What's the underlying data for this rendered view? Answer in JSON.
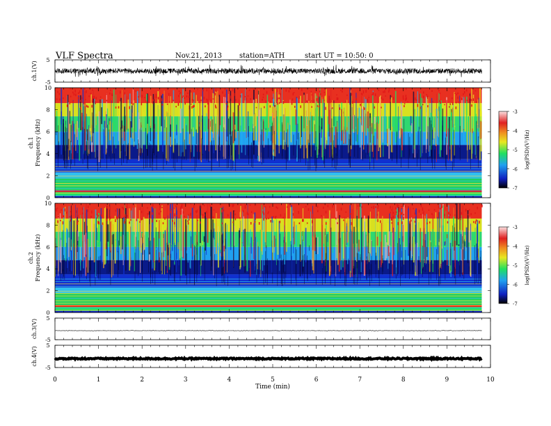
{
  "header": {
    "title": "VLF Spectra",
    "date": "Nov.21, 2013",
    "station": "station=ATH",
    "start": "start  UT =   10:50: 0"
  },
  "chart_data": [
    {
      "id": "ch1-waveform",
      "type": "line",
      "ylabel": "ch.1(V)",
      "ylim": [
        -5,
        5
      ],
      "y_ticks": [
        "5",
        "-5"
      ],
      "baseline": 0,
      "amplitude": 1.2,
      "color": "#000000"
    },
    {
      "id": "ch1-spectrogram",
      "type": "heatmap",
      "channel_label": "ch.1",
      "ylabel": "Frequency  (kHz)",
      "ylim": [
        0,
        10
      ],
      "y_ticks": [
        "0",
        "2",
        "4",
        "6",
        "8",
        "10"
      ],
      "colorbar": {
        "label": "log(PSD)(V²/Hz)",
        "range": [
          -7,
          -3
        ],
        "ticks": [
          "-3",
          "-4",
          "-5",
          "-6",
          "-7"
        ]
      }
    },
    {
      "id": "ch2-spectrogram",
      "type": "heatmap",
      "channel_label": "ch.2",
      "ylabel": "Frequency  (kHz)",
      "ylim": [
        0,
        10
      ],
      "y_ticks": [
        "0",
        "2",
        "4",
        "6",
        "8",
        "10"
      ],
      "colorbar": {
        "label": "log(PSD)(V²/Hz)",
        "range": [
          -7,
          -3
        ],
        "ticks": [
          "-3",
          "-4",
          "-5",
          "-6",
          "-7"
        ]
      }
    },
    {
      "id": "ch3-waveform",
      "type": "line",
      "ylabel": "ch.3(V)",
      "ylim": [
        -5,
        5
      ],
      "y_ticks": [
        "5",
        "-5"
      ],
      "baseline": -0.8,
      "amplitude": 0.1,
      "color": "#000000"
    },
    {
      "id": "ch4-waveform",
      "type": "line",
      "ylabel": "ch.4(V)",
      "ylim": [
        -5,
        5
      ],
      "y_ticks": [
        "5",
        "-5"
      ],
      "baseline": -1.0,
      "amplitude": 0.3,
      "color": "#000000"
    }
  ],
  "x_axis": {
    "label": "Time  (min)",
    "xlim": [
      0,
      10
    ],
    "data_end": 9.8,
    "ticks": [
      "0",
      "1",
      "2",
      "3",
      "4",
      "5",
      "6",
      "7",
      "8",
      "9",
      "10"
    ]
  },
  "colorscale": [
    "#0a0a3c",
    "#1030d0",
    "#20b0f0",
    "#20e060",
    "#e8e820",
    "#f0a020",
    "#e02020",
    "#f5b0b0"
  ]
}
